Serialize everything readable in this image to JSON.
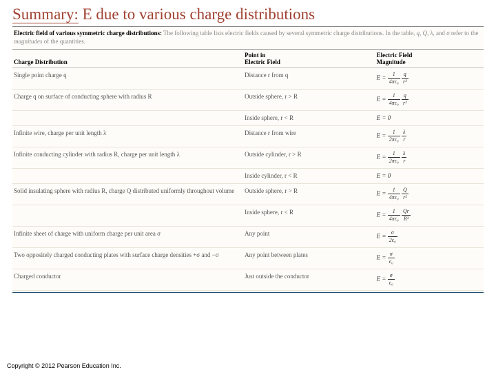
{
  "title_prefix": "Summary:",
  "title_rest": " E due to various charge distributions",
  "caption_bold": "Electric field of various symmetric charge distributions:",
  "caption_light": " The following table lists electric fields caused by several symmetric charge distributions. In the table, ",
  "caption_vars": "q, Q, λ,",
  "caption_mid": " and ",
  "caption_var2": "σ",
  "caption_end": " refer to the ",
  "caption_ital": "magnitudes",
  "caption_final": " of the quantities.",
  "headers": {
    "c1": "Charge Distribution",
    "c2a": "Point in",
    "c2b": "Electric Field",
    "c3a": "Electric Field",
    "c3b": "Magnitude"
  },
  "rows": [
    {
      "dist": "Single point charge q",
      "point": "Distance r from q",
      "f_num": "1",
      "f_den": "4πϵ₀",
      "f_num2": "q",
      "f_den2": "r²"
    },
    {
      "dist": "Charge q on surface of conducting sphere with radius R",
      "point": "Outside sphere, r > R",
      "f_num": "1",
      "f_den": "4πϵ₀",
      "f_num2": "q",
      "f_den2": "r²"
    },
    {
      "dist": "",
      "point": "Inside sphere, r < R",
      "plain": "E = 0"
    },
    {
      "dist": "Infinite wire, charge per unit length λ",
      "point": "Distance r from wire",
      "f_num": "1",
      "f_den": "2πϵ₀",
      "f_num2": "λ",
      "f_den2": "r"
    },
    {
      "dist": "Infinite conducting cylinder with radius R, charge per unit length  λ",
      "point": "Outside cylinder, r > R",
      "f_num": "1",
      "f_den": "2πϵ₀",
      "f_num2": "λ",
      "f_den2": "r"
    },
    {
      "dist": "",
      "point": "Inside cylinder, r < R",
      "plain": "E = 0"
    },
    {
      "dist": "Solid insulating sphere with radius R, charge Q distributed uniformly throughout volume",
      "point": "Outside sphere, r > R",
      "f_num": "1",
      "f_den": "4πϵ₀",
      "f_num2": "Q",
      "f_den2": "r²"
    },
    {
      "dist": "",
      "point": "Inside sphere, r < R",
      "f_num": "1",
      "f_den": "4πϵ₀",
      "f_num2": "Qr",
      "f_den2": "R³"
    },
    {
      "dist": "Infinite sheet of charge with uniform charge per unit area σ",
      "point": "Any point",
      "single_num": "σ",
      "single_den": "2ϵ₀"
    },
    {
      "dist": "Two oppositely charged conducting plates with surface charge densities +σ and −σ",
      "point": "Any point between plates",
      "single_num": "σ",
      "single_den": "ϵ₀"
    },
    {
      "dist": "Charged conductor",
      "point": "Just outside the conductor",
      "single_num": "σ",
      "single_den": "ϵ₀"
    }
  ],
  "copyright": "Copyright © 2012 Pearson Education Inc."
}
